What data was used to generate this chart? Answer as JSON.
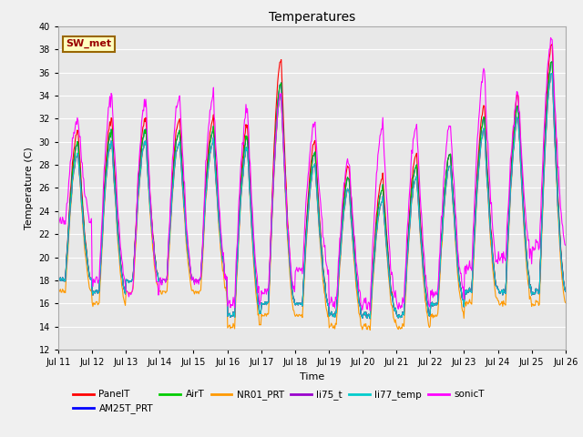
{
  "title": "Temperatures",
  "xlabel": "Time",
  "ylabel": "Temperature (C)",
  "ylim": [
    12,
    40
  ],
  "yticks": [
    12,
    14,
    16,
    18,
    20,
    22,
    24,
    26,
    28,
    30,
    32,
    34,
    36,
    38,
    40
  ],
  "series_order": [
    "PanelT",
    "AM25T_PRT",
    "AirT",
    "NR01_PRT",
    "li75_t",
    "li77_temp",
    "sonicT"
  ],
  "series": {
    "PanelT": {
      "color": "#ff0000",
      "lw": 0.8
    },
    "AM25T_PRT": {
      "color": "#0000ff",
      "lw": 0.8
    },
    "AirT": {
      "color": "#00cc00",
      "lw": 0.8
    },
    "NR01_PRT": {
      "color": "#ff9900",
      "lw": 0.8
    },
    "li75_t": {
      "color": "#9900cc",
      "lw": 0.8
    },
    "li77_temp": {
      "color": "#00cccc",
      "lw": 0.8
    },
    "sonicT": {
      "color": "#ff00ff",
      "lw": 0.8
    }
  },
  "annotation_text": "SW_met",
  "annotation_fc": "#ffffc0",
  "annotation_ec": "#996600",
  "annotation_tc": "#990000",
  "fig_bg": "#f0f0f0",
  "plot_bg": "#e8e8e8",
  "grid_color": "#ffffff",
  "xticklabels": [
    "Jul 11",
    "Jul 12",
    "Jul 13",
    "Jul 14",
    "Jul 15",
    "Jul 16",
    "Jul 17",
    "Jul 18",
    "Jul 19",
    "Jul 20",
    "Jul 21",
    "Jul 22",
    "Jul 23",
    "Jul 24",
    "Jul 25",
    "Jul 26"
  ],
  "daily_peaks": {
    "PanelT": [
      31,
      32,
      32,
      32,
      32,
      31.5,
      37,
      30,
      28,
      27,
      29,
      29,
      33,
      34,
      38.5
    ],
    "AM25T_PRT": [
      30,
      31,
      31,
      31,
      31,
      30.5,
      35,
      29,
      27,
      26,
      28,
      29,
      32,
      33,
      37
    ],
    "AirT": [
      30,
      31,
      31,
      31,
      31,
      30.5,
      35,
      29,
      27,
      26,
      28,
      29,
      32,
      33,
      37
    ],
    "NR01_PRT": [
      29,
      30,
      30,
      30,
      30,
      29.5,
      34,
      28,
      26,
      25,
      27,
      28,
      31,
      32,
      36
    ],
    "li75_t": [
      29,
      30,
      30,
      30,
      30,
      29.5,
      34,
      28,
      26,
      25,
      27,
      28,
      31,
      32,
      36
    ],
    "li77_temp": [
      29,
      30,
      30,
      30,
      30,
      29.5,
      34,
      28,
      26,
      25,
      27,
      28,
      31,
      32,
      36
    ],
    "sonicT": [
      32,
      34,
      33.5,
      34,
      34,
      33,
      34,
      31.5,
      28.5,
      31.5,
      31.5,
      31.5,
      36,
      34,
      39
    ]
  },
  "daily_troughs": {
    "PanelT": [
      18,
      17,
      18,
      18,
      18,
      15,
      16,
      16,
      15,
      15,
      15,
      16,
      17,
      17,
      17
    ],
    "AM25T_PRT": [
      18,
      17,
      18,
      18,
      18,
      15,
      16,
      16,
      15,
      15,
      15,
      16,
      17,
      17,
      17
    ],
    "AirT": [
      18,
      17,
      18,
      18,
      18,
      15,
      16,
      16,
      15,
      15,
      15,
      16,
      17,
      17,
      17
    ],
    "NR01_PRT": [
      17,
      16,
      17,
      17,
      17,
      14,
      15,
      15,
      14,
      14,
      14,
      15,
      16,
      16,
      16
    ],
    "li75_t": [
      18,
      17,
      18,
      18,
      18,
      15,
      16,
      16,
      15,
      15,
      15,
      16,
      17,
      17,
      17
    ],
    "li77_temp": [
      18,
      17,
      18,
      18,
      18,
      15,
      16,
      16,
      15,
      15,
      15,
      16,
      17,
      17,
      17
    ],
    "sonicT": [
      23,
      18,
      17,
      18,
      18,
      16,
      17,
      19,
      16,
      16,
      16,
      17,
      19,
      20,
      21
    ]
  }
}
